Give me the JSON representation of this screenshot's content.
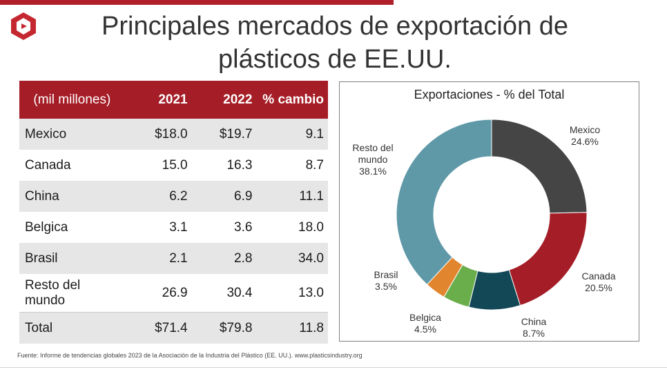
{
  "title": "Principales mercados de exportación de plásticos de EE.UU.",
  "table": {
    "headers": [
      "(mil millones)",
      "2021",
      "2022",
      "% cambio"
    ],
    "rows": [
      [
        "Mexico",
        "$18.0",
        "$19.7",
        "9.1"
      ],
      [
        "Canada",
        "15.0",
        "16.3",
        "8.7"
      ],
      [
        "China",
        "6.2",
        "6.9",
        "11.1"
      ],
      [
        "Belgica",
        "3.1",
        "3.6",
        "18.0"
      ],
      [
        "Brasil",
        "2.1",
        "2.8",
        "34.0"
      ],
      [
        "Resto del mundo",
        "26.9",
        "30.4",
        "13.0"
      ],
      [
        "Total",
        "$71.4",
        "$79.8",
        "11.8"
      ]
    ]
  },
  "chart_data": {
    "type": "pie",
    "title": "Exportaciones - % del Total",
    "categories": [
      "Mexico",
      "Canada",
      "China",
      "Belgica",
      "Brasil",
      "Resto del mundo"
    ],
    "values": [
      24.6,
      20.5,
      8.7,
      4.5,
      3.5,
      38.1
    ],
    "labels": [
      "24.6%",
      "20.5%",
      "8.7%",
      "4.5%",
      "3.5%",
      "38.1%"
    ],
    "colors": [
      "#454545",
      "#a51d27",
      "#134857",
      "#6aad4b",
      "#e2852f",
      "#5f99a8"
    ],
    "donut": true
  },
  "source": "Fuente: Informe de tendencias globales 2023 de la Asociación de la Industria del Plástico (EE. UU.). www.plasticsindustry.org",
  "colors": {
    "accent": "#a51d27",
    "row_shade": "#e6e6e6"
  }
}
